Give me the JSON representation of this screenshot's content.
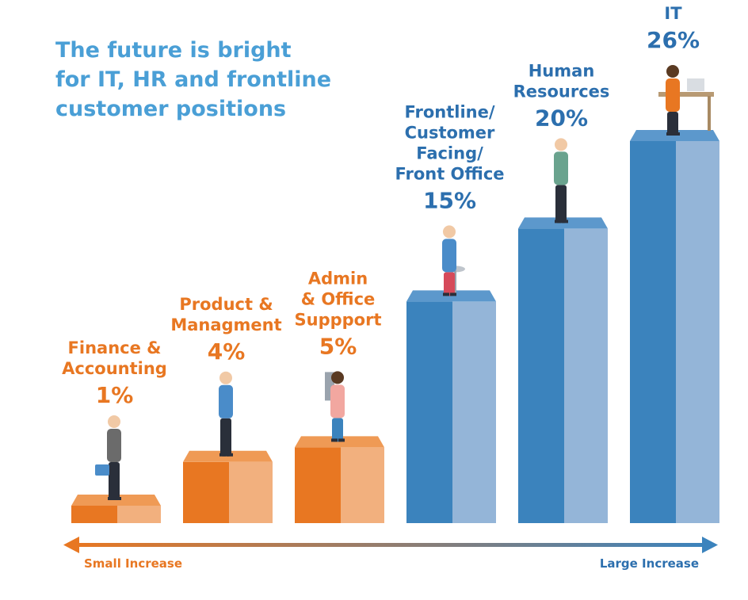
{
  "title_lines": [
    "The future is bright",
    "for IT, HR and frontline",
    "customer positions"
  ],
  "colors": {
    "title": "#4a9fd6",
    "orange_front": "#e87722",
    "orange_side": "#f2b07e",
    "orange_top": "#ef9a55",
    "blue_front": "#3b83bd",
    "blue_side": "#94b5d8",
    "blue_top": "#5c98cc",
    "orange_text": "#e87722",
    "blue_text": "#2c6fae"
  },
  "axis": {
    "left_label": "Small Increase",
    "right_label": "Large Increase"
  },
  "chart_data": {
    "type": "bar",
    "title": "The future is bright for IT, HR and frontline customer positions",
    "categories": [
      "Finance & Accounting",
      "Product & Managment",
      "Admin & Office Suppport",
      "Frontline/ Customer Facing/ Front Office",
      "Human Resources",
      "IT"
    ],
    "values": [
      1,
      4,
      5,
      15,
      20,
      26
    ],
    "unit": "%",
    "ylim": [
      0,
      26
    ],
    "grid": false,
    "legend": "none",
    "bars": [
      {
        "name_lines": [
          "Finance &",
          "Accounting"
        ],
        "value": 1,
        "value_label": "1%",
        "group": "orange",
        "person": "businessman-briefcase"
      },
      {
        "name_lines": [
          "Product &",
          "Managment"
        ],
        "value": 4,
        "value_label": "4%",
        "group": "orange",
        "person": "woman-presenting"
      },
      {
        "name_lines": [
          "Admin",
          "& Office",
          "Suppport"
        ],
        "value": 5,
        "value_label": "5%",
        "group": "orange",
        "person": "woman-office-chair"
      },
      {
        "name_lines": [
          "Frontline/",
          "Customer",
          "Facing/",
          "Front Office"
        ],
        "value": 15,
        "value_label": "15%",
        "group": "blue",
        "person": "woman-stool-phone"
      },
      {
        "name_lines": [
          "Human",
          "Resources"
        ],
        "value": 20,
        "value_label": "20%",
        "group": "blue",
        "person": "man-on-phone"
      },
      {
        "name_lines": [
          "IT"
        ],
        "value": 26,
        "value_label": "26%",
        "group": "blue",
        "person": "man-laptop-desk"
      }
    ]
  }
}
